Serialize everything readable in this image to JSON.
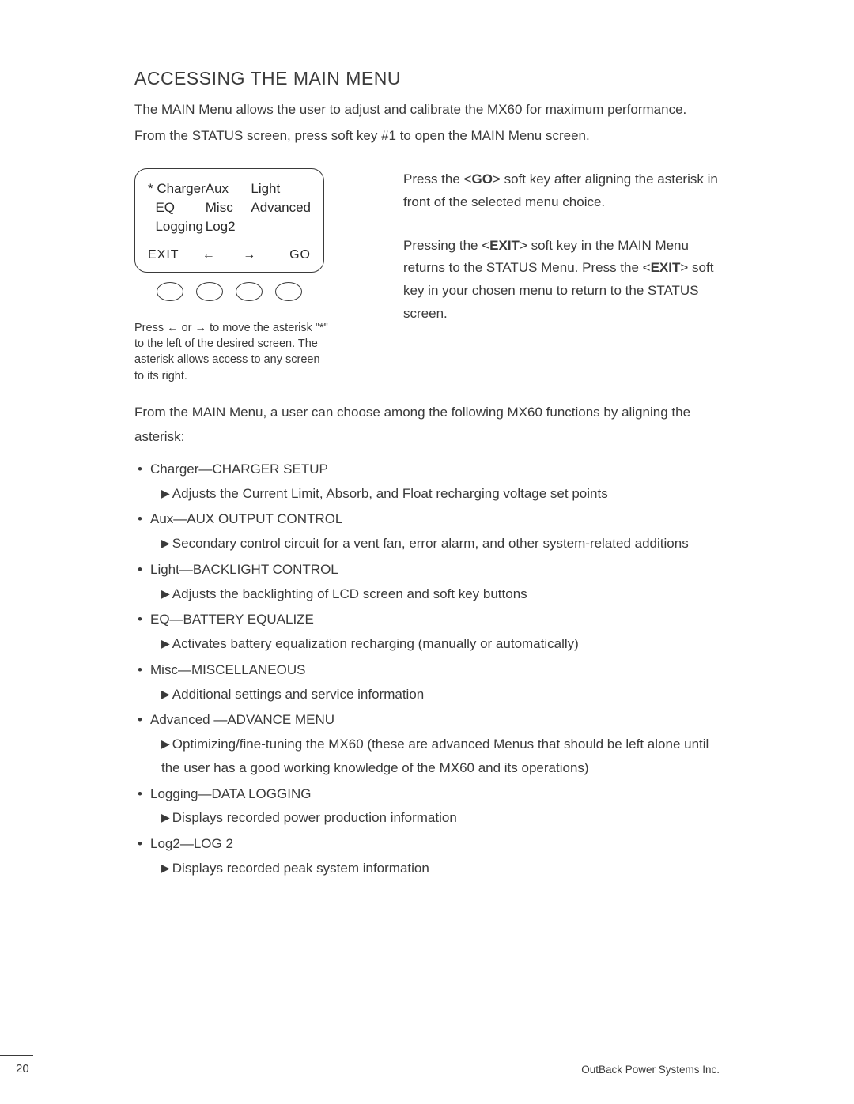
{
  "heading": "ACCESSING THE MAIN MENU",
  "intro1": "The MAIN Menu allows the user to adjust and calibrate the MX60 for maximum performance.",
  "intro2": "From the STATUS screen, press soft key #1 to open the MAIN Menu screen.",
  "screen": {
    "r1c1": "* Charger",
    "r1c2": "Aux",
    "r1c3": "Light",
    "r2c1": "  EQ",
    "r2c2": "Misc",
    "r2c3": "Advanced",
    "r3c1": "  Logging",
    "r3c2": "Log2",
    "r3c3": "",
    "sk1": "EXIT",
    "sk2": "←",
    "sk3": "→",
    "sk4": "GO"
  },
  "caption": "Press ← or → to move the asterisk \"*\" to the left of the desired screen. The asterisk allows access to any screen to its right.",
  "right1_a": "Press the <",
  "right1_b": "GO",
  "right1_c": "> soft key after aligning the asterisk in front of the selected menu choice.",
  "right2_a": "Pressing the <",
  "right2_b": "EXIT",
  "right2_c": "> soft key in the MAIN Menu returns to the STATUS Menu. Press the <",
  "right2_d": "EXIT",
  "right2_e": "> soft key in your chosen menu to return to the STATUS screen.",
  "after": "From the MAIN Menu, a user can choose among the following MX60 functions by aligning the asterisk:",
  "items": [
    {
      "t": "Charger—CHARGER SETUP",
      "d": "Adjusts the Current Limit, Absorb, and Float recharging voltage set points"
    },
    {
      "t": "Aux—AUX OUTPUT CONTROL",
      "d": "Secondary control circuit for a vent fan, error alarm, and other system-related additions"
    },
    {
      "t": "Light—BACKLIGHT CONTROL",
      "d": "Adjusts the backlighting of LCD screen and soft key buttons"
    },
    {
      "t": "EQ—BATTERY EQUALIZE",
      "d": "Activates battery equalization recharging (manually or automatically)"
    },
    {
      "t": "Misc—MISCELLANEOUS",
      "d": "Additional settings and service information"
    },
    {
      "t": "Advanced —ADVANCE MENU",
      "d": "Optimizing/fine-tuning the MX60 (these are advanced Menus that should be left alone until the user has a good working knowledge of the MX60 and its operations)"
    },
    {
      "t": "Logging—DATA LOGGING",
      "d": "Displays recorded power production information"
    },
    {
      "t": "Log2—LOG 2",
      "d": "Displays recorded peak system information"
    }
  ],
  "page_num": "20",
  "footer_right": "OutBack Power Systems Inc."
}
